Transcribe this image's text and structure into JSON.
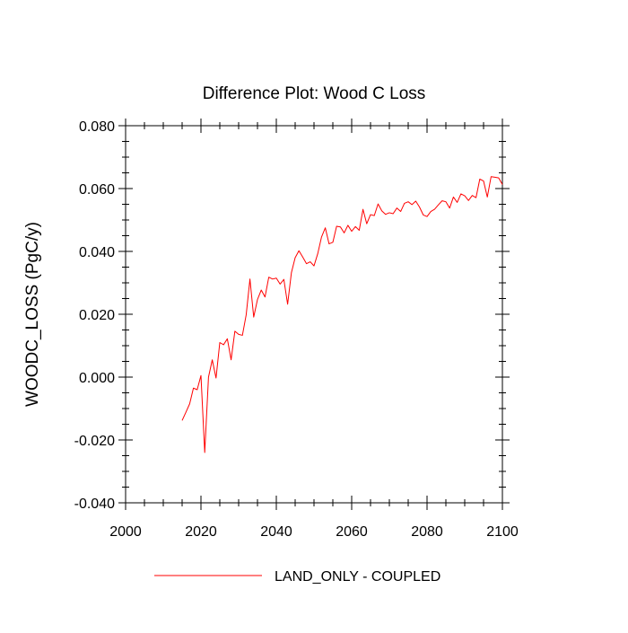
{
  "chart_data": {
    "type": "line",
    "title": "Difference Plot: Wood C Loss",
    "xlabel": "",
    "ylabel": "WOODC_LOSS  (PgC/y)",
    "xlim": [
      2000,
      2100
    ],
    "ylim": [
      -0.04,
      0.08
    ],
    "x_ticks": [
      "2000",
      "2020",
      "2040",
      "2060",
      "2080",
      "2100"
    ],
    "y_ticks": [
      "-0.040",
      "-0.020",
      "0.000",
      "0.020",
      "0.040",
      "0.060",
      "0.080"
    ],
    "grid": false,
    "legend_position": "bottom",
    "series": [
      {
        "name": "LAND_ONLY - COUPLED",
        "color": "#ff0000",
        "x": [
          2015,
          2016,
          2017,
          2018,
          2019,
          2020,
          2021,
          2022,
          2023,
          2024,
          2025,
          2026,
          2027,
          2028,
          2029,
          2030,
          2031,
          2032,
          2033,
          2034,
          2035,
          2036,
          2037,
          2038,
          2039,
          2040,
          2041,
          2042,
          2043,
          2044,
          2045,
          2046,
          2047,
          2048,
          2049,
          2050,
          2051,
          2052,
          2053,
          2054,
          2055,
          2056,
          2057,
          2058,
          2059,
          2060,
          2061,
          2062,
          2063,
          2064,
          2065,
          2066,
          2067,
          2068,
          2069,
          2070,
          2071,
          2072,
          2073,
          2074,
          2075,
          2076,
          2077,
          2078,
          2079,
          2080,
          2081,
          2082,
          2083,
          2084,
          2085,
          2086,
          2087,
          2088,
          2089,
          2090,
          2091,
          2092,
          2093,
          2094,
          2095,
          2096,
          2097,
          2098,
          2099,
          2100
        ],
        "values": [
          -0.0138,
          -0.0112,
          -0.0085,
          -0.0035,
          -0.004,
          0.0005,
          -0.024,
          0.0,
          0.0055,
          -0.0003,
          0.011,
          0.0103,
          0.0122,
          0.0055,
          0.0146,
          0.0136,
          0.0133,
          0.0198,
          0.0312,
          0.0191,
          0.0247,
          0.0277,
          0.0255,
          0.0318,
          0.0312,
          0.0315,
          0.0296,
          0.0311,
          0.0232,
          0.0332,
          0.038,
          0.0402,
          0.0382,
          0.0361,
          0.0367,
          0.0354,
          0.0393,
          0.0446,
          0.0475,
          0.0424,
          0.0429,
          0.048,
          0.0478,
          0.0459,
          0.0483,
          0.0464,
          0.0479,
          0.0467,
          0.0534,
          0.0488,
          0.0517,
          0.0514,
          0.0551,
          0.0529,
          0.0518,
          0.0523,
          0.052,
          0.0538,
          0.0527,
          0.0553,
          0.0558,
          0.0549,
          0.056,
          0.0541,
          0.0516,
          0.0511,
          0.0527,
          0.0534,
          0.0548,
          0.0561,
          0.0558,
          0.0538,
          0.0573,
          0.0556,
          0.0583,
          0.0577,
          0.0562,
          0.0578,
          0.0571,
          0.063,
          0.0624,
          0.0573,
          0.0638,
          0.0636,
          0.0634,
          0.0613
        ]
      }
    ]
  }
}
